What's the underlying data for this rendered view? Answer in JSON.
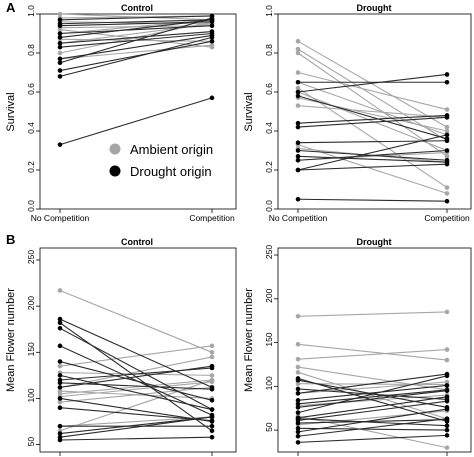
{
  "panel_labels": [
    "A",
    "B"
  ],
  "legend": [
    {
      "label": "Ambient origin",
      "color": "#a6a6a6"
    },
    {
      "label": "Drought origin",
      "color": "#000000"
    }
  ],
  "chart_data": [
    {
      "type": "line",
      "panel": "A",
      "title": "Control",
      "ylabel": "Survival",
      "categories": [
        "No Competition",
        "Competition"
      ],
      "ylim": [
        0,
        1.0
      ],
      "yticks": [
        "0.0",
        "0.2",
        "0.4",
        "0.6",
        "0.8",
        "1.0"
      ],
      "ytick_values": [
        0.0,
        0.2,
        0.4,
        0.6,
        0.8,
        1.0
      ],
      "legend_placement": "bottom-right",
      "series": [
        {
          "group": "Ambient origin",
          "values": [
            [
              1.0,
              0.97
            ],
            [
              0.98,
              0.99
            ],
            [
              0.96,
              0.95
            ],
            [
              0.93,
              0.94
            ],
            [
              0.92,
              0.83
            ],
            [
              0.9,
              0.97
            ],
            [
              0.87,
              0.86
            ],
            [
              0.85,
              0.95
            ],
            [
              0.8,
              0.96
            ],
            [
              0.77,
              0.84
            ]
          ]
        },
        {
          "group": "Drought origin",
          "values": [
            [
              0.97,
              0.99
            ],
            [
              0.95,
              0.97
            ],
            [
              0.94,
              0.96
            ],
            [
              0.9,
              0.94
            ],
            [
              0.88,
              0.97
            ],
            [
              0.85,
              0.91
            ],
            [
              0.83,
              0.9
            ],
            [
              0.77,
              0.89
            ],
            [
              0.75,
              0.98
            ],
            [
              0.71,
              0.86
            ],
            [
              0.68,
              0.88
            ],
            [
              0.33,
              0.57
            ]
          ]
        }
      ]
    },
    {
      "type": "line",
      "panel": "A",
      "title": "Drought",
      "ylabel": "Survival",
      "categories": [
        "No Competition",
        "Competition"
      ],
      "ylim": [
        0,
        1.0
      ],
      "yticks": [
        "0.0",
        "0.2",
        "0.4",
        "0.6",
        "0.8",
        "1.0"
      ],
      "ytick_values": [
        0.0,
        0.2,
        0.4,
        0.6,
        0.8,
        1.0
      ],
      "series": [
        {
          "group": "Ambient origin",
          "values": [
            [
              0.86,
              0.42
            ],
            [
              0.82,
              0.35
            ],
            [
              0.8,
              0.27
            ],
            [
              0.7,
              0.51
            ],
            [
              0.65,
              0.38
            ],
            [
              0.62,
              0.11
            ],
            [
              0.6,
              0.3
            ],
            [
              0.57,
              0.4
            ],
            [
              0.53,
              0.47
            ],
            [
              0.33,
              0.08
            ],
            [
              0.31,
              0.24
            ],
            [
              0.25,
              0.29
            ]
          ]
        },
        {
          "group": "Drought origin",
          "values": [
            [
              0.65,
              0.65
            ],
            [
              0.6,
              0.69
            ],
            [
              0.58,
              0.36
            ],
            [
              0.44,
              0.48
            ],
            [
              0.42,
              0.47
            ],
            [
              0.34,
              0.35
            ],
            [
              0.3,
              0.25
            ],
            [
              0.27,
              0.24
            ],
            [
              0.25,
              0.3
            ],
            [
              0.2,
              0.23
            ],
            [
              0.2,
              0.38
            ],
            [
              0.05,
              0.04
            ]
          ]
        }
      ]
    },
    {
      "type": "line",
      "panel": "B",
      "title": "Control",
      "ylabel": "Mean Flower number",
      "categories": [
        "No Competition",
        "Competition"
      ],
      "ylim": [
        42,
        263
      ],
      "yticks": [
        "50",
        "100",
        "150",
        "200",
        "250"
      ],
      "ytick_values": [
        50,
        100,
        150,
        200,
        250
      ],
      "series": [
        {
          "group": "Ambient origin",
          "values": [
            [
              217,
              150
            ],
            [
              135,
              157
            ],
            [
              128,
              125
            ],
            [
              112,
              145
            ],
            [
              108,
              100
            ],
            [
              105,
              120
            ],
            [
              102,
              118
            ],
            [
              96,
              112
            ],
            [
              70,
              80
            ],
            [
              65,
              120
            ]
          ]
        },
        {
          "group": "Drought origin",
          "values": [
            [
              186,
              112
            ],
            [
              182,
              65
            ],
            [
              176,
              88
            ],
            [
              157,
              82
            ],
            [
              140,
              98
            ],
            [
              125,
              88
            ],
            [
              120,
              133
            ],
            [
              117,
              110
            ],
            [
              112,
              135
            ],
            [
              100,
              75
            ],
            [
              90,
              76
            ],
            [
              70,
              70
            ],
            [
              62,
              80
            ],
            [
              58,
              80
            ],
            [
              55,
              58
            ]
          ]
        }
      ]
    },
    {
      "type": "line",
      "panel": "B",
      "title": "Drought",
      "ylabel": "Mean Flower number",
      "categories": [
        "No Competition",
        "Competition"
      ],
      "ylim": [
        25,
        258
      ],
      "yticks": [
        "50",
        "100",
        "150",
        "200",
        "250"
      ],
      "ytick_values": [
        50,
        100,
        150,
        200,
        250
      ],
      "series": [
        {
          "group": "Ambient origin",
          "values": [
            [
              180,
              185
            ],
            [
              148,
              130
            ],
            [
              131,
              142
            ],
            [
              122,
              96
            ],
            [
              116,
              63
            ],
            [
              103,
              102
            ],
            [
              92,
              105
            ],
            [
              78,
              90
            ],
            [
              66,
              30
            ],
            [
              56,
              72
            ]
          ]
        },
        {
          "group": "Drought origin",
          "values": [
            [
              109,
              60
            ],
            [
              107,
              76
            ],
            [
              97,
              85
            ],
            [
              92,
              114
            ],
            [
              84,
              101
            ],
            [
              80,
              96
            ],
            [
              76,
              95
            ],
            [
              70,
              112
            ],
            [
              64,
              88
            ],
            [
              63,
              55
            ],
            [
              61,
              83
            ],
            [
              58,
              62
            ],
            [
              52,
              50
            ],
            [
              48,
              74
            ],
            [
              43,
              63
            ],
            [
              36,
              44
            ]
          ]
        }
      ]
    }
  ]
}
